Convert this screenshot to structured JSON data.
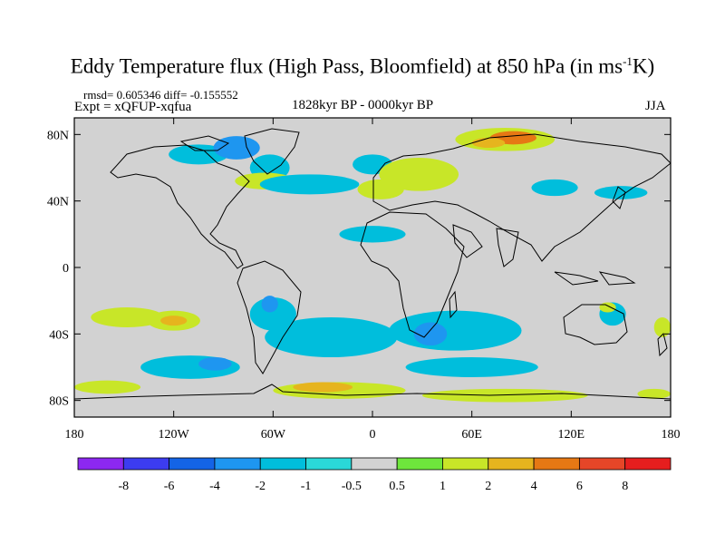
{
  "title": {
    "main": "Eddy Temperature flux (High Pass, Bloomfield) at 850 hPa (in ms",
    "unit_sup": "-1",
    "unit_end": "K)"
  },
  "stats": "rmsd= 0.605346 diff= -0.155552",
  "expt": "Expt = xQFUP-xqfua",
  "period": "1828kyr BP - 0000kyr BP",
  "season": "JJA",
  "map": {
    "lon_range": [
      -180,
      180
    ],
    "lat_range": [
      -90,
      90
    ],
    "x_ticks": [
      {
        "lon": -180,
        "label": "180"
      },
      {
        "lon": -120,
        "label": "120W"
      },
      {
        "lon": -60,
        "label": "60W"
      },
      {
        "lon": 0,
        "label": "0"
      },
      {
        "lon": 60,
        "label": "60E"
      },
      {
        "lon": 120,
        "label": "120E"
      },
      {
        "lon": 180,
        "label": "180"
      }
    ],
    "y_ticks": [
      {
        "lat": 80,
        "label": "80N"
      },
      {
        "lat": 40,
        "label": "40N"
      },
      {
        "lat": 0,
        "label": "0"
      },
      {
        "lat": -40,
        "label": "40S"
      },
      {
        "lat": -80,
        "label": "80S"
      }
    ],
    "background_color": "#d2d2d2"
  },
  "colorbar": {
    "levels": [
      "-8",
      "-6",
      "-4",
      "-2",
      "-1",
      "-0.5",
      "0.5",
      "1",
      "2",
      "4",
      "6",
      "8"
    ],
    "colors": [
      "#8c28f0",
      "#3c3cf0",
      "#1464e6",
      "#1e96f0",
      "#00bedc",
      "#2ad8d8",
      "#d2d2d2",
      "#6ee63c",
      "#c8e628",
      "#e6b41e",
      "#e67814",
      "#e64628",
      "#e61e1e"
    ]
  },
  "anomalies": [
    {
      "lon": -105,
      "lat": 68,
      "rx": 18,
      "ry": 6,
      "level": "-1"
    },
    {
      "lon": -82,
      "lat": 72,
      "rx": 14,
      "ry": 7,
      "level": "-2"
    },
    {
      "lon": -62,
      "lat": 60,
      "rx": 12,
      "ry": 8,
      "level": "-1"
    },
    {
      "lon": -65,
      "lat": 52,
      "rx": 18,
      "ry": 5,
      "level": "1"
    },
    {
      "lon": -38,
      "lat": 50,
      "rx": 30,
      "ry": 6,
      "level": "-1"
    },
    {
      "lon": 0,
      "lat": 62,
      "rx": 12,
      "ry": 6,
      "level": "-1"
    },
    {
      "lon": 28,
      "lat": 56,
      "rx": 24,
      "ry": 10,
      "level": "1"
    },
    {
      "lon": 5,
      "lat": 47,
      "rx": 14,
      "ry": 6,
      "level": "1"
    },
    {
      "lon": 80,
      "lat": 77,
      "rx": 30,
      "ry": 7,
      "level": "1"
    },
    {
      "lon": 85,
      "lat": 78,
      "rx": 14,
      "ry": 4,
      "level": "4"
    },
    {
      "lon": 70,
      "lat": 75,
      "rx": 10,
      "ry": 3,
      "level": "2"
    },
    {
      "lon": 110,
      "lat": 48,
      "rx": 14,
      "ry": 5,
      "level": "-1"
    },
    {
      "lon": 150,
      "lat": 45,
      "rx": 16,
      "ry": 4,
      "level": "-1"
    },
    {
      "lon": 0,
      "lat": 20,
      "rx": 20,
      "ry": 5,
      "level": "-1"
    },
    {
      "lon": -148,
      "lat": -30,
      "rx": 22,
      "ry": 6,
      "level": "1"
    },
    {
      "lon": -120,
      "lat": -32,
      "rx": 16,
      "ry": 6,
      "level": "1"
    },
    {
      "lon": -120,
      "lat": -32,
      "rx": 8,
      "ry": 3,
      "level": "2"
    },
    {
      "lon": -60,
      "lat": -28,
      "rx": 14,
      "ry": 10,
      "level": "-1"
    },
    {
      "lon": -62,
      "lat": -22,
      "rx": 5,
      "ry": 5,
      "level": "-2"
    },
    {
      "lon": -25,
      "lat": -42,
      "rx": 40,
      "ry": 12,
      "level": "-1"
    },
    {
      "lon": 50,
      "lat": -38,
      "rx": 40,
      "ry": 12,
      "level": "-1"
    },
    {
      "lon": 35,
      "lat": -40,
      "rx": 10,
      "ry": 7,
      "level": "-2"
    },
    {
      "lon": -110,
      "lat": -60,
      "rx": 30,
      "ry": 7,
      "level": "-1"
    },
    {
      "lon": -95,
      "lat": -58,
      "rx": 10,
      "ry": 4,
      "level": "-2"
    },
    {
      "lon": 60,
      "lat": -60,
      "rx": 40,
      "ry": 6,
      "level": "-1"
    },
    {
      "lon": 145,
      "lat": -28,
      "rx": 8,
      "ry": 7,
      "level": "-1"
    },
    {
      "lon": 142,
      "lat": -24,
      "rx": 5,
      "ry": 3,
      "level": "1"
    },
    {
      "lon": 175,
      "lat": -36,
      "rx": 5,
      "ry": 6,
      "level": "1"
    },
    {
      "lon": -160,
      "lat": -72,
      "rx": 20,
      "ry": 4,
      "level": "1"
    },
    {
      "lon": -20,
      "lat": -74,
      "rx": 40,
      "ry": 5,
      "level": "1"
    },
    {
      "lon": -30,
      "lat": -72,
      "rx": 18,
      "ry": 3,
      "level": "2"
    },
    {
      "lon": 80,
      "lat": -77,
      "rx": 50,
      "ry": 4,
      "level": "1"
    },
    {
      "lon": 170,
      "lat": -76,
      "rx": 10,
      "ry": 3,
      "level": "1"
    }
  ]
}
